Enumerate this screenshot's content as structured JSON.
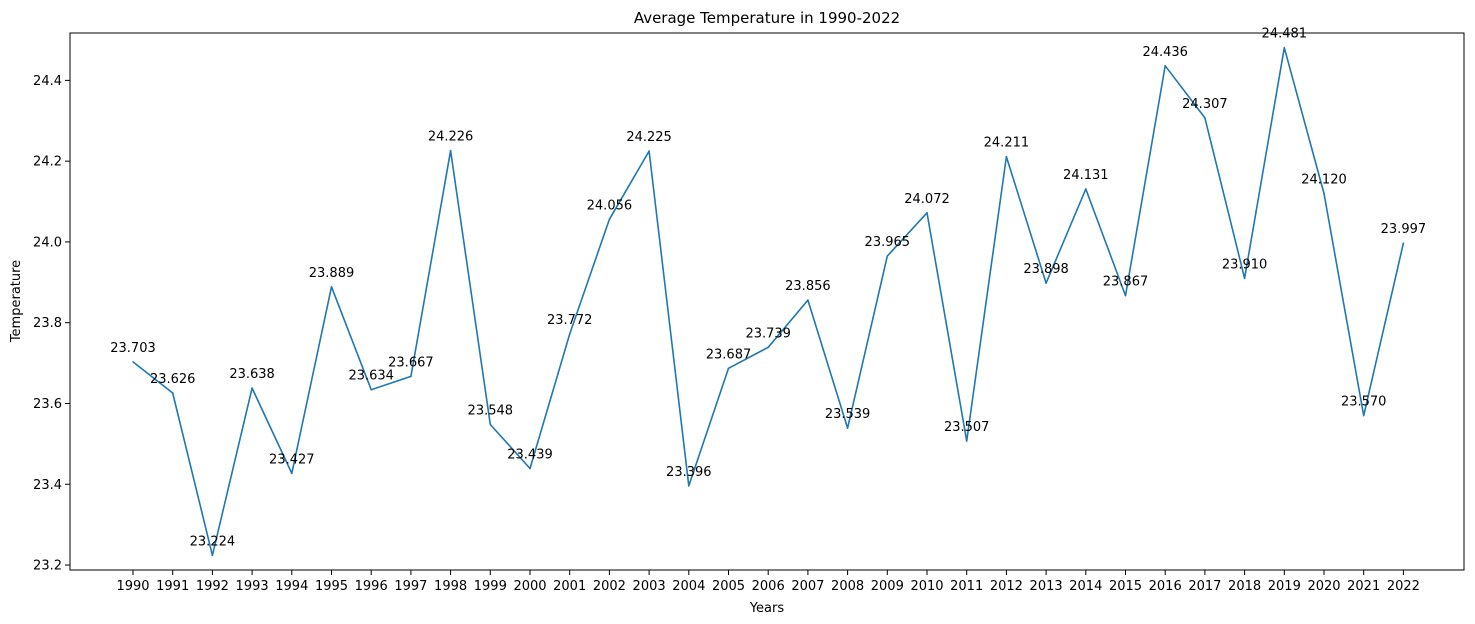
{
  "chart_data": {
    "type": "line",
    "title": "Average Temperature in 1990-2022",
    "xlabel": "Years",
    "ylabel": "Temperature",
    "x": [
      "1990",
      "1991",
      "1992",
      "1993",
      "1994",
      "1995",
      "1996",
      "1997",
      "1998",
      "1999",
      "2000",
      "2001",
      "2002",
      "2003",
      "2004",
      "2005",
      "2006",
      "2007",
      "2008",
      "2009",
      "2010",
      "2011",
      "2012",
      "2013",
      "2014",
      "2015",
      "2016",
      "2017",
      "2018",
      "2019",
      "2020",
      "2021",
      "2022"
    ],
    "values": [
      23.703,
      23.626,
      23.224,
      23.638,
      23.427,
      23.889,
      23.634,
      23.667,
      24.226,
      23.548,
      23.439,
      23.772,
      24.056,
      24.225,
      23.396,
      23.687,
      23.739,
      23.856,
      23.539,
      23.965,
      24.072,
      23.507,
      24.211,
      23.898,
      24.131,
      23.867,
      24.436,
      24.307,
      23.91,
      24.481,
      24.12,
      23.57,
      23.997
    ],
    "value_labels": [
      "23.703",
      "23.626",
      "23.224",
      "23.638",
      "23.427",
      "23.889",
      "23.634",
      "23.667",
      "24.226",
      "23.548",
      "23.439",
      "23.772",
      "24.056",
      "24.225",
      "23.396",
      "23.687",
      "23.739",
      "23.856",
      "23.539",
      "23.965",
      "24.072",
      "23.507",
      "24.211",
      "23.898",
      "24.131",
      "23.867",
      "24.436",
      "24.307",
      "23.910",
      "24.481",
      "24.120",
      "23.570",
      "23.997"
    ],
    "yticks": [
      23.2,
      23.4,
      23.6,
      23.8,
      24.0,
      24.2,
      24.4
    ],
    "ytick_labels": [
      "23.2",
      "23.4",
      "23.6",
      "23.8",
      "24.0",
      "24.2",
      "24.4"
    ],
    "ylim": [
      23.1877,
      24.5173
    ],
    "grid": false,
    "legend": "none",
    "line_color": "#1f77b4"
  }
}
